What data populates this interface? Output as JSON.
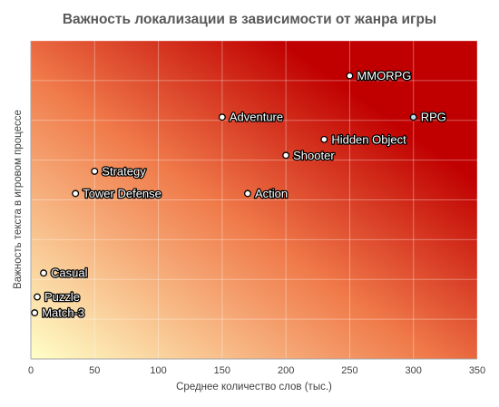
{
  "chart_data": {
    "type": "scatter",
    "title": "Важность локализации в зависимости от жанра игры",
    "xlabel": "Среднее количество слов (тыс.)",
    "ylabel": "Важность текста в игровом процессе",
    "xlim": [
      0,
      350
    ],
    "xticks": [
      0,
      50,
      100,
      150,
      200,
      250,
      300,
      350
    ],
    "ylim": [
      0,
      10
    ],
    "y_tick_labels_shown": false,
    "grid": true,
    "legend": "none",
    "background": "diagonal gradient from light yellow (bottom-left) to dark red (top-right)",
    "colors": {
      "gradient_low": "#ffffc8",
      "gradient_mid": "#f07a4a",
      "gradient_high": "#c00000",
      "marker_fill": "#ffffff",
      "marker_stroke": "#000000",
      "highlight_marker_fill": "#bdd7ee",
      "label_color": "#ffffff",
      "label_outline": "#000000"
    },
    "points": [
      {
        "label": "MMORPG",
        "x": 250,
        "y": 8.9
      },
      {
        "label": "Adventure",
        "x": 150,
        "y": 7.6
      },
      {
        "label": "RPG",
        "x": 300,
        "y": 7.6,
        "highlight": true
      },
      {
        "label": "Hidden Object",
        "x": 230,
        "y": 6.9
      },
      {
        "label": "Shooter",
        "x": 200,
        "y": 6.4
      },
      {
        "label": "Strategy",
        "x": 50,
        "y": 5.9
      },
      {
        "label": "Tower Defense",
        "x": 35,
        "y": 5.2
      },
      {
        "label": "Action",
        "x": 170,
        "y": 5.2
      },
      {
        "label": "Casual",
        "x": 10,
        "y": 2.7
      },
      {
        "label": "Puzzle",
        "x": 5,
        "y": 1.95
      },
      {
        "label": "Match-3",
        "x": 3,
        "y": 1.45
      }
    ]
  }
}
